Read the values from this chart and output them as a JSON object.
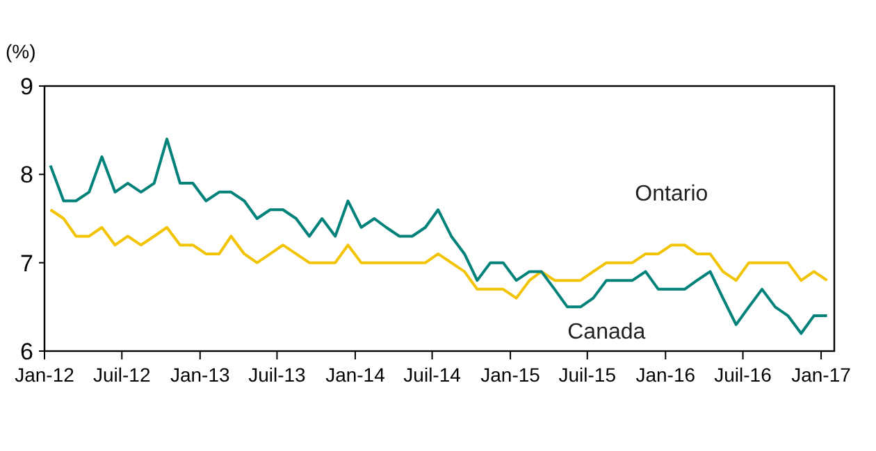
{
  "chart_data": {
    "type": "line",
    "ylabel": "(%)",
    "x": [
      "2012-01-15",
      "2012-02-15",
      "2012-03-15",
      "2012-04-15",
      "2012-05-15",
      "2012-06-15",
      "2012-07-15",
      "2012-08-15",
      "2012-09-15",
      "2012-10-15",
      "2012-11-15",
      "2012-12-15",
      "2013-01-15",
      "2013-02-15",
      "2013-03-15",
      "2013-04-15",
      "2013-05-15",
      "2013-06-15",
      "2013-07-15",
      "2013-08-15",
      "2013-09-15",
      "2013-10-15",
      "2013-11-15",
      "2013-12-15",
      "2014-01-15",
      "2014-02-15",
      "2014-03-15",
      "2014-04-15",
      "2014-05-15",
      "2014-06-15",
      "2014-07-15",
      "2014-08-15",
      "2014-09-15",
      "2014-10-15",
      "2014-11-15",
      "2014-12-15",
      "2015-01-15",
      "2015-02-15",
      "2015-03-15",
      "2015-04-15",
      "2015-05-15",
      "2015-06-15",
      "2015-07-15",
      "2015-08-15",
      "2015-09-15",
      "2015-10-15",
      "2015-11-15",
      "2015-12-15",
      "2016-01-15",
      "2016-02-15",
      "2016-03-15",
      "2016-04-15",
      "2016-05-15",
      "2016-06-15",
      "2016-07-15",
      "2016-08-15",
      "2016-09-15",
      "2016-10-15",
      "2016-11-15",
      "2016-12-15",
      "2017-01-15"
    ],
    "series": [
      {
        "name": "Ontario",
        "color": "#f2c300",
        "values": [
          7.6,
          7.5,
          7.3,
          7.3,
          7.4,
          7.2,
          7.3,
          7.2,
          7.3,
          7.4,
          7.2,
          7.2,
          7.1,
          7.1,
          7.3,
          7.1,
          7.0,
          7.1,
          7.2,
          7.1,
          7.0,
          7.0,
          7.0,
          7.2,
          7.0,
          7.0,
          7.0,
          7.0,
          7.0,
          7.0,
          7.1,
          7.0,
          6.9,
          6.7,
          6.7,
          6.7,
          6.6,
          6.8,
          6.9,
          6.8,
          6.8,
          6.8,
          6.9,
          7.0,
          7.0,
          7.0,
          7.1,
          7.1,
          7.2,
          7.2,
          7.1,
          7.1,
          6.9,
          6.8,
          7.0,
          7.0,
          7.0,
          7.0,
          6.8,
          6.9,
          6.8
        ]
      },
      {
        "name": "Canada",
        "color": "#00827a",
        "values": [
          8.1,
          7.7,
          7.7,
          7.8,
          8.2,
          7.8,
          7.9,
          7.8,
          7.9,
          8.4,
          7.9,
          7.9,
          7.7,
          7.8,
          7.8,
          7.7,
          7.5,
          7.6,
          7.6,
          7.5,
          7.3,
          7.5,
          7.3,
          7.7,
          7.4,
          7.5,
          7.4,
          7.3,
          7.3,
          7.4,
          7.6,
          7.3,
          7.1,
          6.8,
          7.0,
          7.0,
          6.8,
          6.9,
          6.9,
          6.7,
          6.5,
          6.5,
          6.6,
          6.8,
          6.8,
          6.8,
          6.9,
          6.7,
          6.7,
          6.7,
          6.8,
          6.9,
          6.6,
          6.3,
          6.5,
          6.7,
          6.5,
          6.4,
          6.2,
          6.4,
          6.4
        ]
      }
    ],
    "xlim": [
      "2012-01-01",
      "2017-02-01"
    ],
    "xticks": [
      {
        "value": "2012-01-01",
        "label": "Jan-12"
      },
      {
        "value": "2012-07-01",
        "label": "Juil-12"
      },
      {
        "value": "2013-01-01",
        "label": "Jan-13"
      },
      {
        "value": "2013-07-01",
        "label": "Juil-13"
      },
      {
        "value": "2014-01-01",
        "label": "Jan-14"
      },
      {
        "value": "2014-07-01",
        "label": "Juil-14"
      },
      {
        "value": "2015-01-01",
        "label": "Jan-15"
      },
      {
        "value": "2015-07-01",
        "label": "Juil-15"
      },
      {
        "value": "2016-01-01",
        "label": "Jan-16"
      },
      {
        "value": "2016-07-01",
        "label": "Juil-16"
      },
      {
        "value": "2017-01-01",
        "label": "Jan-17"
      }
    ],
    "ylim": [
      6,
      9
    ],
    "yticks": [
      6,
      7,
      8,
      9
    ],
    "grid": false,
    "marker": "none",
    "line_style": "solid"
  }
}
